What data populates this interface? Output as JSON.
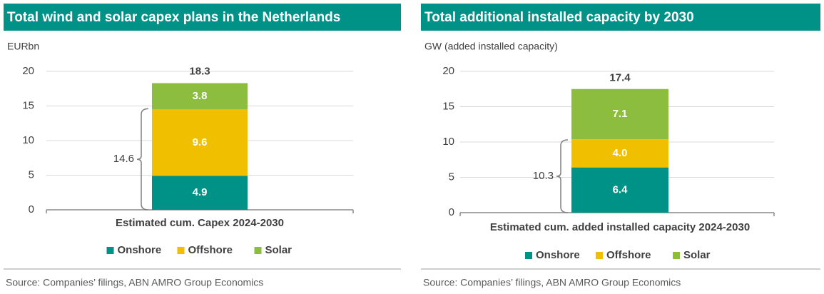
{
  "chart_data": [
    {
      "type": "bar",
      "stacked": true,
      "title": "Total wind and solar capex plans in the Netherlands",
      "y_label": "EURbn",
      "categories": [
        "Estimated cum. Capex 2024-2030"
      ],
      "series": [
        {
          "name": "Onshore",
          "color": "#009286",
          "values": [
            4.9
          ]
        },
        {
          "name": "Offshore",
          "color": "#f0c000",
          "values": [
            9.6
          ]
        },
        {
          "name": "Solar",
          "color": "#8cbd3f",
          "values": [
            3.8
          ]
        }
      ],
      "totals": [
        18.3
      ],
      "bracket_value": 14.6,
      "ylim": [
        0,
        20
      ],
      "yticks": [
        0,
        5,
        10,
        15,
        20
      ],
      "grid": true,
      "source": "Source: Companies’ filings, ABN AMRO Group Economics"
    },
    {
      "type": "bar",
      "stacked": true,
      "title": "Total additional installed capacity by 2030",
      "y_label": "GW (added installed capacity)",
      "categories": [
        "Estimated cum. added installed capacity 2024-2030"
      ],
      "series": [
        {
          "name": "Onshore",
          "color": "#009286",
          "values": [
            6.4
          ]
        },
        {
          "name": "Offshore",
          "color": "#f0c000",
          "values": [
            4.0
          ],
          "value_labels": [
            "4.0"
          ]
        },
        {
          "name": "Solar",
          "color": "#8cbd3f",
          "values": [
            7.1
          ]
        }
      ],
      "totals": [
        17.4
      ],
      "bracket_value": 10.3,
      "ylim": [
        0,
        20
      ],
      "yticks": [
        0,
        5,
        10,
        15,
        20
      ],
      "grid": true,
      "source": "Source: Companies’ filings, ABN AMRO Group Economics"
    }
  ]
}
